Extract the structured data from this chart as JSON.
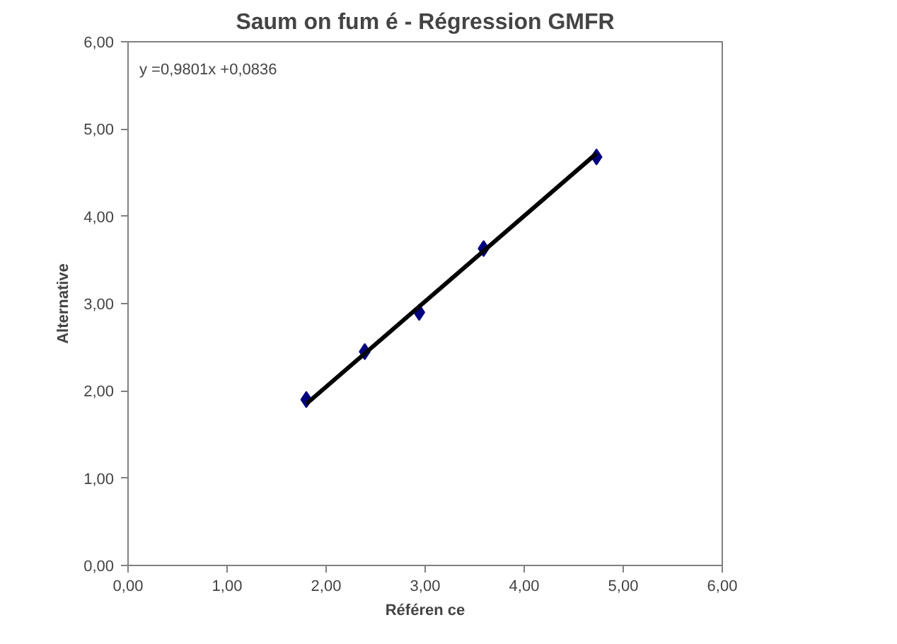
{
  "chart_data": {
    "type": "scatter",
    "title": "Saum on fum é - Régression GMFR",
    "xlabel": "Référen ce",
    "ylabel": "Alternative",
    "xlim": [
      0,
      6
    ],
    "ylim": [
      0,
      6
    ],
    "xticks": [
      {
        "value": 0,
        "label": "0,00"
      },
      {
        "value": 1,
        "label": "1,00"
      },
      {
        "value": 2,
        "label": "2,00"
      },
      {
        "value": 3,
        "label": "3,00"
      },
      {
        "value": 4,
        "label": "4,00"
      },
      {
        "value": 5,
        "label": "5,00"
      },
      {
        "value": 6,
        "label": "6,00"
      }
    ],
    "yticks": [
      {
        "value": 0,
        "label": "0,00"
      },
      {
        "value": 1,
        "label": "1,00"
      },
      {
        "value": 2,
        "label": "2,00"
      },
      {
        "value": 3,
        "label": "3,00"
      },
      {
        "value": 4,
        "label": "4,00"
      },
      {
        "value": 5,
        "label": "5,00"
      },
      {
        "value": 6,
        "label": "6,00"
      }
    ],
    "grid": false,
    "marker": "diamond",
    "annotations": [
      "y =0,9801x +0,0836"
    ],
    "series": [
      {
        "color": "#000080",
        "x": [
          1.8,
          2.39,
          2.94,
          3.59,
          4.73
        ],
        "values": [
          1.9,
          2.45,
          2.9,
          3.63,
          4.68
        ]
      },
      {
        "type": "line",
        "color": "#000000",
        "x": [
          1.8,
          4.73
        ],
        "values": [
          1.85,
          4.72
        ],
        "marker": "none",
        "line_style": "solid"
      }
    ]
  }
}
